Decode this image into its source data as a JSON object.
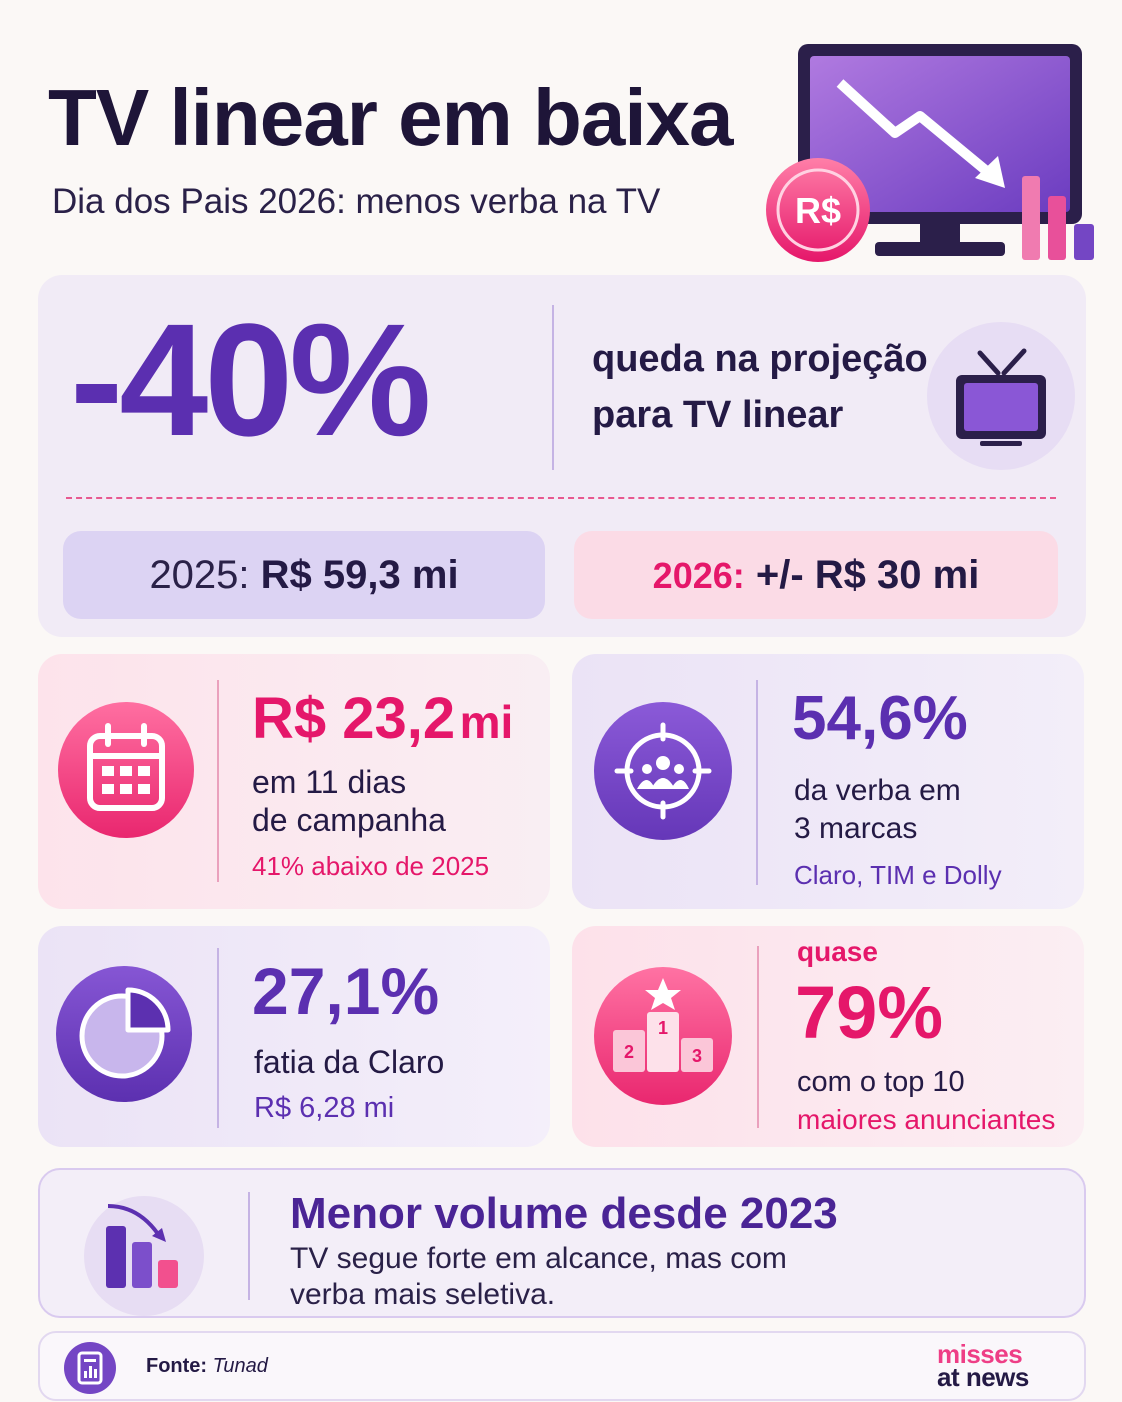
{
  "header": {
    "title": "TV linear em baixa",
    "subtitle": "Dia dos Pais 2026: menos verba na TV",
    "coin": "R$"
  },
  "hero": {
    "value": "-40%",
    "description_line1": "queda na projeção",
    "description_line2": "para TV linear"
  },
  "comparison": [
    {
      "label": "2025:",
      "value": "R$ 59,3 mi"
    },
    {
      "label": "2026:",
      "value": "+/- R$ 30 mi"
    }
  ],
  "cards": [
    {
      "value": "R$ 23,2",
      "unit": "mi",
      "line1": "em 11 dias",
      "line2": "de campanha",
      "note": "41% abaixo de 2025"
    },
    {
      "value": "54,6%",
      "line1": "da verba em",
      "line2": "3 marcas",
      "note": "Claro, TIM e Dolly"
    },
    {
      "value": "27,1%",
      "line1": "fatia da Claro",
      "note": "R$ 6,28 mi"
    },
    {
      "prefix": "quase",
      "value": "79%",
      "line1": "com o top 10",
      "note": "maiores anunciantes",
      "icon_labels": [
        "1",
        "2",
        "3"
      ]
    }
  ],
  "summary": {
    "title": "Menor volume desde 2023",
    "text_line1": "TV segue forte em alcance, mas com",
    "text_line2": "verba mais seletiva."
  },
  "footer": {
    "source_label": "Fonte:",
    "source": "Tunad",
    "brand_line1": "misses",
    "brand_line2": "at news"
  }
}
